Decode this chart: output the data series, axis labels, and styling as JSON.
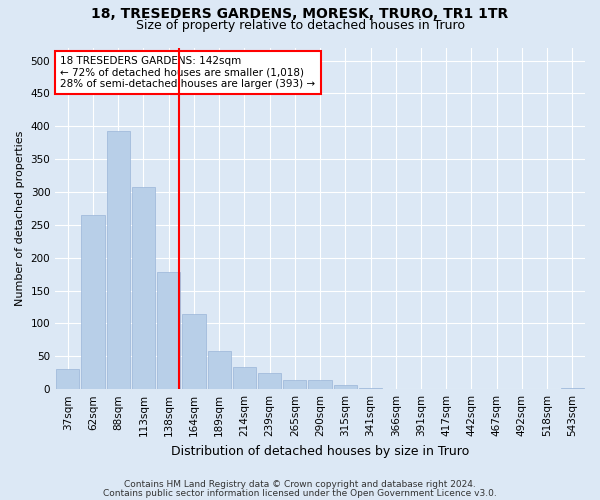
{
  "title1": "18, TRESEDERS GARDENS, MORESK, TRURO, TR1 1TR",
  "title2": "Size of property relative to detached houses in Truro",
  "xlabel": "Distribution of detached houses by size in Truro",
  "ylabel": "Number of detached properties",
  "categories": [
    "37sqm",
    "62sqm",
    "88sqm",
    "113sqm",
    "138sqm",
    "164sqm",
    "189sqm",
    "214sqm",
    "239sqm",
    "265sqm",
    "290sqm",
    "315sqm",
    "341sqm",
    "366sqm",
    "391sqm",
    "417sqm",
    "442sqm",
    "467sqm",
    "492sqm",
    "518sqm",
    "543sqm"
  ],
  "values": [
    30,
    265,
    393,
    307,
    178,
    115,
    58,
    33,
    25,
    14,
    14,
    7,
    2,
    1,
    0,
    0,
    0,
    0,
    0,
    0,
    2
  ],
  "bar_color": "#b8cfe8",
  "bar_edge_color": "#9ab5d8",
  "vline_color": "red",
  "vline_x_index": 4,
  "annotation_line1": "18 TRESEDERS GARDENS: 142sqm",
  "annotation_line2": "← 72% of detached houses are smaller (1,018)",
  "annotation_line3": "28% of semi-detached houses are larger (393) →",
  "annotation_box_facecolor": "white",
  "annotation_box_edgecolor": "red",
  "ylim": [
    0,
    520
  ],
  "yticks": [
    0,
    50,
    100,
    150,
    200,
    250,
    300,
    350,
    400,
    450,
    500
  ],
  "bg_color": "#dce8f5",
  "plot_bg_color": "#dce8f5",
  "grid_color": "white",
  "title1_fontsize": 10,
  "title2_fontsize": 9,
  "xlabel_fontsize": 9,
  "ylabel_fontsize": 8,
  "tick_fontsize": 7.5,
  "annotation_fontsize": 7.5,
  "footer_fontsize": 6.5,
  "footer_text1": "Contains HM Land Registry data © Crown copyright and database right 2024.",
  "footer_text2": "Contains public sector information licensed under the Open Government Licence v3.0."
}
